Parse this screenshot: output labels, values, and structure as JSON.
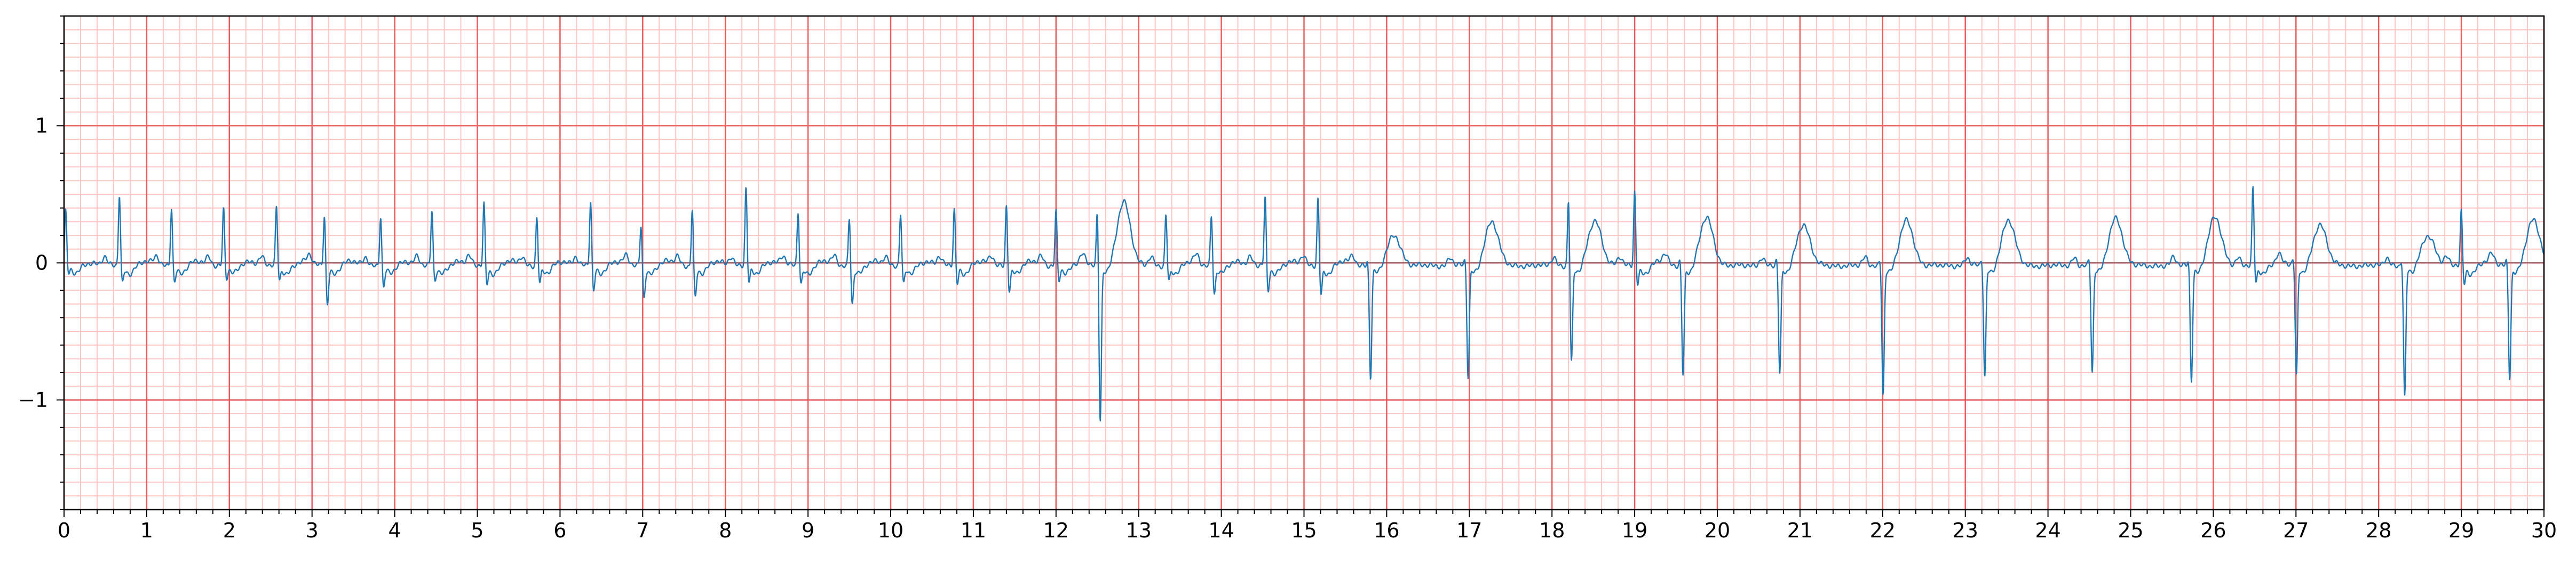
{
  "chart_data": {
    "type": "line",
    "title": "",
    "xlabel": "",
    "ylabel": "",
    "xlim": [
      0,
      30
    ],
    "ylim": [
      -1.8,
      1.8
    ],
    "x_ticks": [
      "0",
      "1",
      "2",
      "3",
      "4",
      "5",
      "6",
      "7",
      "8",
      "9",
      "10",
      "11",
      "12",
      "13",
      "14",
      "15",
      "16",
      "17",
      "18",
      "19",
      "20",
      "21",
      "22",
      "23",
      "24",
      "25",
      "26",
      "27",
      "28",
      "29",
      "30"
    ],
    "y_ticks": [
      {
        "value": 1,
        "label": "1"
      },
      {
        "value": 0,
        "label": "0"
      },
      {
        "value": -1,
        "label": "−1"
      }
    ],
    "grid": {
      "major_x": 1,
      "major_y": 1,
      "minor_x": 0.2,
      "minor_y": 0.1
    },
    "colors": {
      "major_grid": "#ee5a5a",
      "minor_grid": "#ffc4c4",
      "trace": "#1f77b4"
    },
    "series": [
      {
        "beats": [
          {
            "t": 0.02,
            "r": 0.4,
            "s": -0.05,
            "t_wave": 0.02
          },
          {
            "t": 0.67,
            "r": 0.52,
            "s": -0.12,
            "t_wave": 0.03
          },
          {
            "t": 1.3,
            "r": 0.43,
            "s": -0.1,
            "t_wave": 0.03
          },
          {
            "t": 1.93,
            "r": 0.42,
            "s": -0.08,
            "t_wave": 0.03
          },
          {
            "t": 2.57,
            "r": 0.43,
            "s": -0.1,
            "t_wave": 0.03
          },
          {
            "t": 3.15,
            "r": 0.38,
            "s": -0.27,
            "t_wave": 0.03
          },
          {
            "t": 3.83,
            "r": 0.37,
            "s": -0.15,
            "t_wave": 0.03
          },
          {
            "t": 4.45,
            "r": 0.4,
            "s": -0.1,
            "t_wave": 0.03
          },
          {
            "t": 5.08,
            "r": 0.46,
            "s": -0.12,
            "t_wave": 0.03
          },
          {
            "t": 5.72,
            "r": 0.36,
            "s": -0.12,
            "t_wave": 0.03
          },
          {
            "t": 6.37,
            "r": 0.48,
            "s": -0.18,
            "t_wave": 0.03
          },
          {
            "t": 6.98,
            "r": 0.3,
            "s": -0.22,
            "t_wave": 0.03
          },
          {
            "t": 7.6,
            "r": 0.42,
            "s": -0.22,
            "t_wave": 0.03
          },
          {
            "t": 8.25,
            "r": 0.57,
            "s": -0.12,
            "t_wave": 0.03
          },
          {
            "t": 8.88,
            "r": 0.4,
            "s": -0.12,
            "t_wave": 0.03
          },
          {
            "t": 9.5,
            "r": 0.36,
            "s": -0.27,
            "t_wave": 0.03
          },
          {
            "t": 10.12,
            "r": 0.38,
            "s": -0.13,
            "t_wave": 0.03
          },
          {
            "t": 10.77,
            "r": 0.42,
            "s": -0.12,
            "t_wave": 0.03
          },
          {
            "t": 11.4,
            "r": 0.45,
            "s": -0.17,
            "t_wave": 0.03
          },
          {
            "t": 12.0,
            "r": 0.4,
            "s": -0.1,
            "t_wave": 0.03
          },
          {
            "t": 12.5,
            "r": 0.4,
            "s": -1.13,
            "t_wave": 0.47
          },
          {
            "t": 13.33,
            "r": 0.38,
            "s": -0.1,
            "t_wave": 0.03
          },
          {
            "t": 13.88,
            "r": 0.37,
            "s": -0.2,
            "t_wave": 0.03
          },
          {
            "t": 14.53,
            "r": 0.5,
            "s": -0.18,
            "t_wave": 0.03
          },
          {
            "t": 15.17,
            "r": 0.5,
            "s": -0.2,
            "t_wave": 0.03
          },
          {
            "t": 15.77,
            "r": 0.05,
            "s": -0.8,
            "t_wave": 0.22
          },
          {
            "t": 16.95,
            "r": 0.05,
            "s": -0.8,
            "t_wave": 0.32
          },
          {
            "t": 18.2,
            "r": 0.5,
            "s": -0.7,
            "t_wave": 0.33
          },
          {
            "t": 19.0,
            "r": 0.55,
            "s": -0.12,
            "t_wave": 0.03
          },
          {
            "t": 19.55,
            "r": 0.05,
            "s": -0.78,
            "t_wave": 0.35
          },
          {
            "t": 20.72,
            "r": 0.05,
            "s": -0.78,
            "t_wave": 0.3
          },
          {
            "t": 21.97,
            "r": 0.05,
            "s": -0.93,
            "t_wave": 0.33
          },
          {
            "t": 23.2,
            "r": 0.05,
            "s": -0.8,
            "t_wave": 0.33
          },
          {
            "t": 24.5,
            "r": 0.05,
            "s": -0.77,
            "t_wave": 0.35
          },
          {
            "t": 25.7,
            "r": 0.05,
            "s": -0.82,
            "t_wave": 0.35
          },
          {
            "t": 26.48,
            "r": 0.57,
            "s": -0.12,
            "t_wave": 0.03
          },
          {
            "t": 26.97,
            "r": 0.05,
            "s": -0.8,
            "t_wave": 0.3
          },
          {
            "t": 28.28,
            "r": 0.05,
            "s": -0.95,
            "t_wave": 0.22
          },
          {
            "t": 29.0,
            "r": 0.4,
            "s": -0.12,
            "t_wave": 0.03
          },
          {
            "t": 29.55,
            "r": 0.05,
            "s": -0.8,
            "t_wave": 0.33
          }
        ]
      }
    ]
  }
}
